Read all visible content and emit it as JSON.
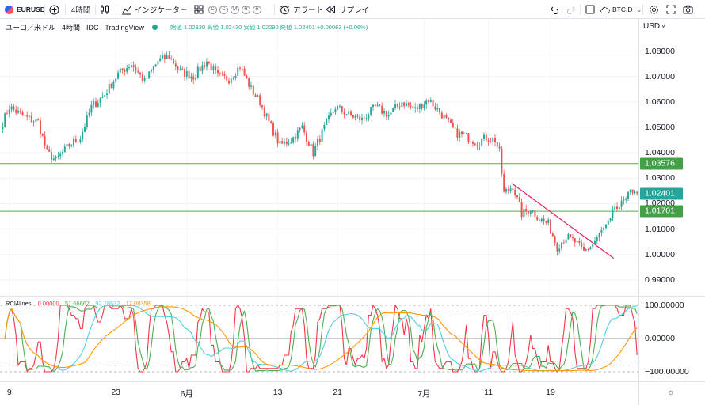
{
  "toolbar": {
    "symbol": "EURUSD",
    "interval": "4時間",
    "indicators_label": "インジケーター",
    "alerts_label": "アラート",
    "replay_label": "リプレイ",
    "compare_symbol": "BTC.D",
    "template_letters": [
      "C",
      "C",
      "M",
      "R",
      "R"
    ]
  },
  "legend": {
    "title": "ユーロ／米ドル · 4時間 · IDC · TradingView",
    "ohlc": "始値 1.02330 高値 1.02430 安値 1.02290 終値 1.02401 +0.00063 (+0.06%)"
  },
  "indicator_legend": {
    "name": "RCI4lines",
    "values": [
      {
        "text": "0.00000",
        "color": "#f23645"
      },
      {
        "text": "51.66667",
        "color": "#4caf50"
      },
      {
        "text": "92.78632",
        "color": "#4dd0e1"
      },
      {
        "text": "17.08358",
        "color": "#ff9800"
      }
    ]
  },
  "price_axis": {
    "currency": "USD",
    "ticks": [
      "1.08000",
      "1.07000",
      "1.06000",
      "1.05000",
      "1.04000",
      "1.03000",
      "1.02000",
      "1.01000",
      "1.00000",
      "0.99000"
    ],
    "labels": [
      {
        "text": "1.03576",
        "color": "#43a047"
      },
      {
        "text": "1.02401",
        "color": "#26a69a"
      },
      {
        "text": "1.01701",
        "color": "#43a047"
      }
    ]
  },
  "indicator_axis": {
    "ticks": [
      "100.00000",
      "0.00000",
      "−100.00000"
    ]
  },
  "time_axis": {
    "ticks": [
      "9",
      "23",
      "6月",
      "13",
      "21",
      "7月",
      "11",
      "19"
    ]
  },
  "colors": {
    "up": "#26a69a",
    "down": "#ef5350",
    "hline": "#4caf50",
    "trendline": "#e91e63"
  },
  "chart_data": [
    {
      "type": "candlestick",
      "title": "ユーロ／米ドル · 4時間 · IDC · TradingView",
      "ylim": [
        0.985,
        1.087
      ],
      "x_ticks": [
        "9",
        "23",
        "6月",
        "13",
        "21",
        "7月",
        "11",
        "19"
      ],
      "waypoints": [
        [
          0,
          1.052
        ],
        [
          3,
          1.058
        ],
        [
          10,
          1.054
        ],
        [
          16,
          1.052
        ],
        [
          20,
          1.04
        ],
        [
          24,
          1.037
        ],
        [
          30,
          1.043
        ],
        [
          35,
          1.046
        ],
        [
          40,
          1.058
        ],
        [
          46,
          1.063
        ],
        [
          52,
          1.071
        ],
        [
          58,
          1.075
        ],
        [
          64,
          1.068
        ],
        [
          70,
          1.076
        ],
        [
          75,
          1.078
        ],
        [
          80,
          1.072
        ],
        [
          86,
          1.07
        ],
        [
          92,
          1.076
        ],
        [
          97,
          1.07
        ],
        [
          102,
          1.069
        ],
        [
          107,
          1.074
        ],
        [
          112,
          1.065
        ],
        [
          116,
          1.06
        ],
        [
          120,
          1.052
        ],
        [
          125,
          1.043
        ],
        [
          130,
          1.045
        ],
        [
          135,
          1.05
        ],
        [
          140,
          1.04
        ],
        [
          144,
          1.048
        ],
        [
          150,
          1.058
        ],
        [
          156,
          1.055
        ],
        [
          162,
          1.053
        ],
        [
          168,
          1.058
        ],
        [
          174,
          1.055
        ],
        [
          180,
          1.06
        ],
        [
          186,
          1.057
        ],
        [
          192,
          1.061
        ],
        [
          198,
          1.055
        ],
        [
          204,
          1.048
        ],
        [
          210,
          1.046
        ],
        [
          214,
          1.044
        ],
        [
          218,
          1.046
        ],
        [
          222,
          1.045
        ],
        [
          224,
          1.04
        ],
        [
          226,
          1.024
        ],
        [
          230,
          1.027
        ],
        [
          234,
          1.016
        ],
        [
          238,
          1.018
        ],
        [
          242,
          1.014
        ],
        [
          246,
          1.012
        ],
        [
          250,
          1.003
        ],
        [
          254,
          1.007
        ],
        [
          258,
          1.005
        ],
        [
          262,
          1.001
        ],
        [
          266,
          1.004
        ],
        [
          270,
          1.009
        ],
        [
          274,
          1.013
        ],
        [
          276,
          1.019
        ],
        [
          278,
          1.017
        ],
        [
          280,
          1.022
        ],
        [
          282,
          1.025
        ],
        [
          284,
          1.0235
        ],
        [
          286,
          1.024
        ]
      ],
      "hlines": [
        1.03576,
        1.01701
      ],
      "last_price": 1.02401,
      "trendline": [
        [
          230,
          1.028
        ],
        [
          276,
          0.9985
        ]
      ]
    },
    {
      "type": "line",
      "title": "RCI4lines",
      "ylim": [
        -100,
        100
      ],
      "series": [
        {
          "name": "RCI4lines",
          "period": 5,
          "color": "#f23645"
        },
        {
          "name": "RCI4lines",
          "period": 9,
          "color": "#4caf50"
        },
        {
          "name": "RCI4lines",
          "period": 26,
          "color": "#4dd0e1"
        },
        {
          "name": "RCI4lines",
          "period": 52,
          "color": "#ff9800"
        }
      ],
      "reference_levels": [
        100,
        80,
        0,
        -80,
        -100
      ]
    }
  ]
}
